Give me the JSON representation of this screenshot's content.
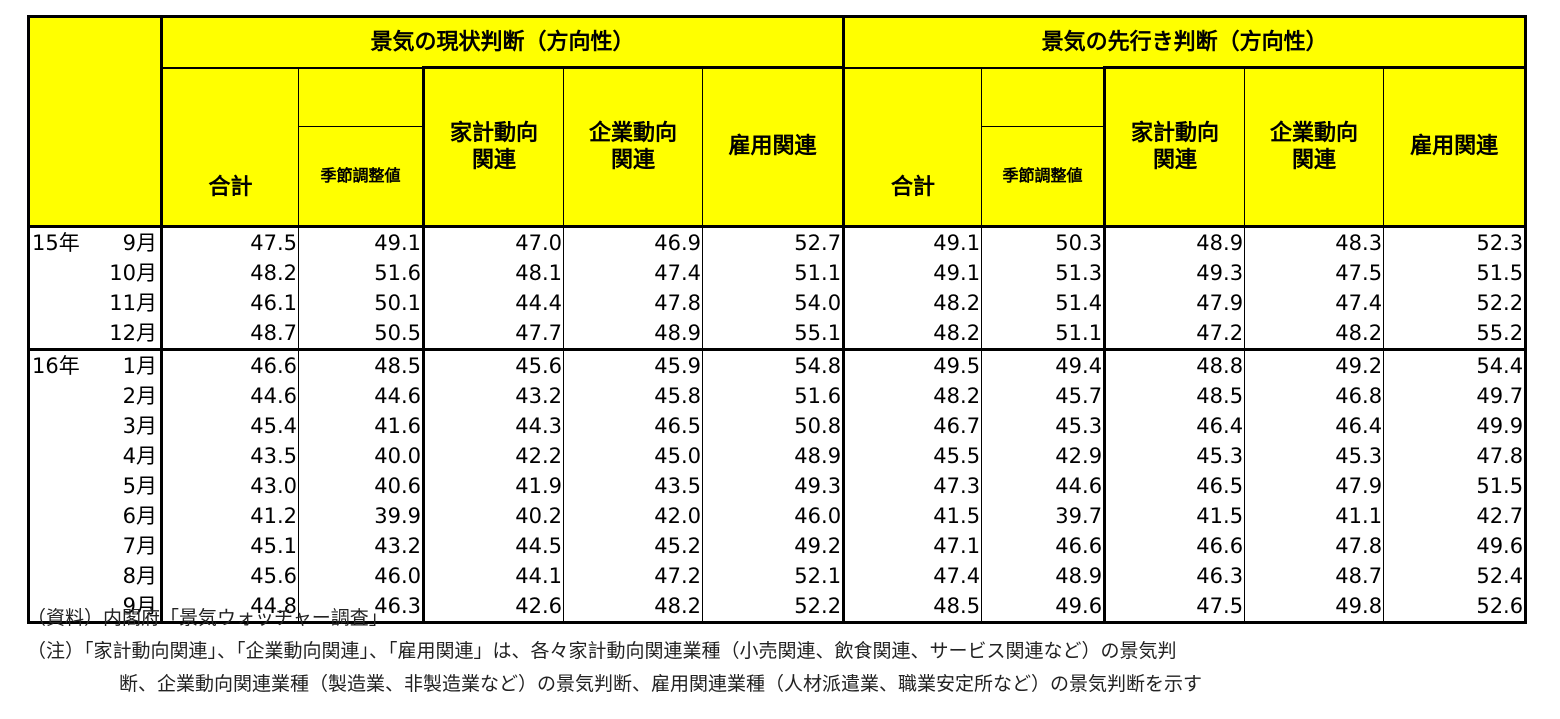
{
  "header": {
    "group_current": "景気の現状判断（方向性）",
    "group_outlook": "景気の先行き判断（方向性）",
    "col_total": "合計",
    "col_seasonal": "季節調整値",
    "col_household_1": "家計動向",
    "col_household_2": "関連",
    "col_business_1": "企業動向",
    "col_business_2": "関連",
    "col_employment": "雇用関連"
  },
  "rows": [
    {
      "year": "15年",
      "month": "9月",
      "v": [
        "47.5",
        "49.1",
        "47.0",
        "46.9",
        "52.7",
        "49.1",
        "50.3",
        "48.9",
        "48.3",
        "52.3"
      ]
    },
    {
      "year": "",
      "month": "10月",
      "v": [
        "48.2",
        "51.6",
        "48.1",
        "47.4",
        "51.1",
        "49.1",
        "51.3",
        "49.3",
        "47.5",
        "51.5"
      ]
    },
    {
      "year": "",
      "month": "11月",
      "v": [
        "46.1",
        "50.1",
        "44.4",
        "47.8",
        "54.0",
        "48.2",
        "51.4",
        "47.9",
        "47.4",
        "52.2"
      ]
    },
    {
      "year": "",
      "month": "12月",
      "v": [
        "48.7",
        "50.5",
        "47.7",
        "48.9",
        "55.1",
        "48.2",
        "51.1",
        "47.2",
        "48.2",
        "55.2"
      ]
    },
    {
      "year": "16年",
      "month": "1月",
      "v": [
        "46.6",
        "48.5",
        "45.6",
        "45.9",
        "54.8",
        "49.5",
        "49.4",
        "48.8",
        "49.2",
        "54.4"
      ]
    },
    {
      "year": "",
      "month": "2月",
      "v": [
        "44.6",
        "44.6",
        "43.2",
        "45.8",
        "51.6",
        "48.2",
        "45.7",
        "48.5",
        "46.8",
        "49.7"
      ]
    },
    {
      "year": "",
      "month": "3月",
      "v": [
        "45.4",
        "41.6",
        "44.3",
        "46.5",
        "50.8",
        "46.7",
        "45.3",
        "46.4",
        "46.4",
        "49.9"
      ]
    },
    {
      "year": "",
      "month": "4月",
      "v": [
        "43.5",
        "40.0",
        "42.2",
        "45.0",
        "48.9",
        "45.5",
        "42.9",
        "45.3",
        "45.3",
        "47.8"
      ]
    },
    {
      "year": "",
      "month": "5月",
      "v": [
        "43.0",
        "40.6",
        "41.9",
        "43.5",
        "49.3",
        "47.3",
        "44.6",
        "46.5",
        "47.9",
        "51.5"
      ]
    },
    {
      "year": "",
      "month": "6月",
      "v": [
        "41.2",
        "39.9",
        "40.2",
        "42.0",
        "46.0",
        "41.5",
        "39.7",
        "41.5",
        "41.1",
        "42.7"
      ]
    },
    {
      "year": "",
      "month": "7月",
      "v": [
        "45.1",
        "43.2",
        "44.5",
        "45.2",
        "49.2",
        "47.1",
        "46.6",
        "46.6",
        "47.8",
        "49.6"
      ]
    },
    {
      "year": "",
      "month": "8月",
      "v": [
        "45.6",
        "46.0",
        "44.1",
        "47.2",
        "52.1",
        "47.4",
        "48.9",
        "46.3",
        "48.7",
        "52.4"
      ]
    },
    {
      "year": "",
      "month": "9月",
      "v": [
        "44.8",
        "46.3",
        "42.6",
        "48.2",
        "52.2",
        "48.5",
        "49.6",
        "47.5",
        "49.8",
        "52.6"
      ]
    }
  ],
  "notes": {
    "source": "（資料）内閣府「景気ウォッチャー調査」",
    "note_line1": "（注）「家計動向関連」、「企業動向関連」、「雇用関連」は、各々家計動向関連業種（小売関連、飲食関連、サービス関連など）の景気判",
    "note_line2": "断、企業動向関連業種（製造業、非製造業など）の景気判断、雇用関連業種（人材派遣業、職業安定所など）の景気判断を示す"
  }
}
